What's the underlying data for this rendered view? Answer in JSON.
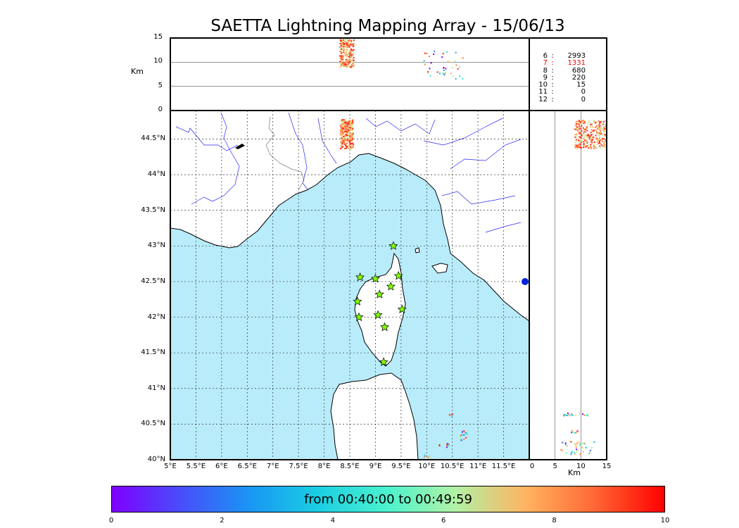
{
  "title": "SAETTA Lightning Mapping Array - 15/06/13",
  "alt_axis": {
    "unit_label": "Km",
    "ticks": [
      "15",
      "10",
      "5",
      "0"
    ],
    "values": [
      15,
      10,
      5,
      0
    ]
  },
  "x_axis": {
    "ticks": [
      "5°E",
      "5.5°E",
      "6°E",
      "6.5°E",
      "7°E",
      "7.5°E",
      "8°E",
      "8.5°E",
      "9°E",
      "9.5°E",
      "10°E",
      "10.5°E",
      "11°E",
      "11.5°E"
    ],
    "values": [
      5,
      5.5,
      6,
      6.5,
      7,
      7.5,
      8,
      8.5,
      9,
      9.5,
      10,
      10.5,
      11,
      11.5
    ]
  },
  "y_axis": {
    "ticks": [
      "44.5°N",
      "44°N",
      "43.5°N",
      "43°N",
      "42.5°N",
      "42°N",
      "41.5°N",
      "41°N",
      "40.5°N",
      "40°N"
    ],
    "values": [
      44.5,
      44.0,
      43.5,
      43.0,
      42.5,
      42.0,
      41.5,
      41.0,
      40.5,
      40.0
    ]
  },
  "side_axis": {
    "unit_label": "Km",
    "ticks": [
      "0",
      "5",
      "10",
      "15"
    ],
    "values": [
      0,
      5,
      10,
      15
    ]
  },
  "station_counts": [
    {
      "stations": "6",
      "count": "2993",
      "highlight": false
    },
    {
      "stations": "7",
      "count": "1331",
      "highlight": true
    },
    {
      "stations": "8",
      "count": "680",
      "highlight": false
    },
    {
      "stations": "9",
      "count": "220",
      "highlight": false
    },
    {
      "stations": "10",
      "count": "15",
      "highlight": false
    },
    {
      "stations": "11",
      "count": "0",
      "highlight": false
    },
    {
      "stations": "12",
      "count": "0",
      "highlight": false
    }
  ],
  "colorbar": {
    "label": "from 00:40:00 to 00:49:59",
    "ticks": [
      "0",
      "2",
      "4",
      "6",
      "8",
      "10"
    ],
    "values": [
      0,
      2,
      4,
      6,
      8,
      10
    ]
  },
  "stations_lonlat": [
    [
      9.35,
      43.0
    ],
    [
      8.7,
      42.56
    ],
    [
      9.0,
      42.54
    ],
    [
      9.45,
      42.58
    ],
    [
      9.3,
      42.43
    ],
    [
      9.08,
      42.32
    ],
    [
      8.65,
      42.22
    ],
    [
      9.52,
      42.11
    ],
    [
      8.68,
      42.0
    ],
    [
      9.05,
      42.03
    ],
    [
      9.18,
      41.86
    ],
    [
      9.16,
      41.37
    ]
  ],
  "colors": {
    "sea": "#b8ecfb",
    "land": "#ffffff",
    "river": "#2a2af0",
    "station": "#7fff00",
    "highlight": "#ff0000"
  }
}
